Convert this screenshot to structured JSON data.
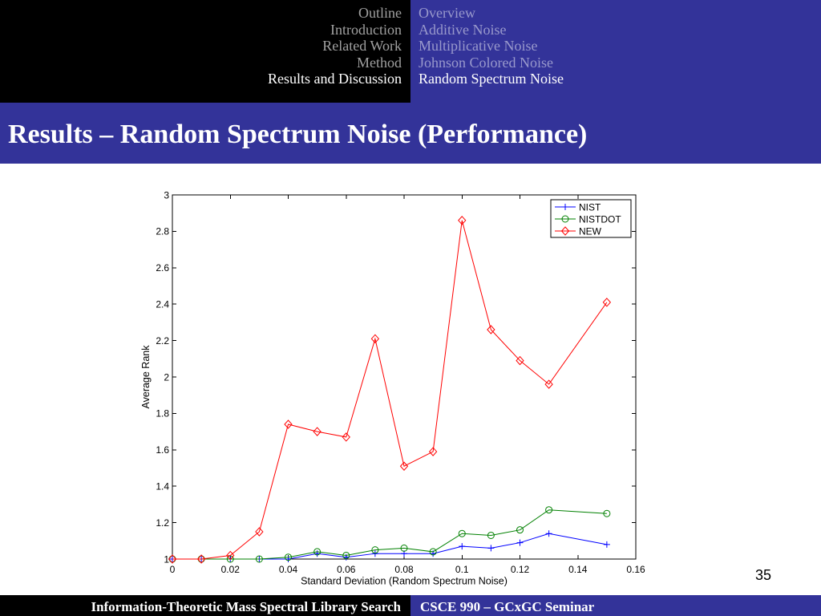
{
  "colors": {
    "header_left_bg": "#000000",
    "theme_blue": "#333399",
    "inactive_section": "#a0a0a0",
    "inactive_subsection": "#9999cc",
    "active_text": "#ffffff"
  },
  "header": {
    "sections": [
      {
        "label": "Outline",
        "active": false
      },
      {
        "label": "Introduction",
        "active": false
      },
      {
        "label": "Related Work",
        "active": false
      },
      {
        "label": "Method",
        "active": false
      },
      {
        "label": "Results and Discussion",
        "active": true
      }
    ],
    "subsections": [
      {
        "label": "Overview",
        "active": false
      },
      {
        "label": "Additive Noise",
        "active": false
      },
      {
        "label": "Multiplicative Noise",
        "active": false
      },
      {
        "label": "Johnson Colored Noise",
        "active": false
      },
      {
        "label": "Random Spectrum Noise",
        "active": true
      }
    ]
  },
  "frame_title": "Results – Random Spectrum Noise (Performance)",
  "page_number": "35",
  "footer": {
    "left": "Information-Theoretic Mass Spectral Library Search",
    "right": "CSCE 990 – GCxGC Seminar"
  },
  "chart_data": {
    "type": "line",
    "xlabel": "Standard Deviation (Random Spectrum Noise)",
    "ylabel": "Average Rank",
    "xlim": [
      0,
      0.16
    ],
    "ylim": [
      1,
      3
    ],
    "xticks": [
      0,
      0.02,
      0.04,
      0.06,
      0.08,
      0.1,
      0.12,
      0.14,
      0.16
    ],
    "yticks": [
      1,
      1.2,
      1.4,
      1.6,
      1.8,
      2,
      2.2,
      2.4,
      2.6,
      2.8,
      3
    ],
    "grid": false,
    "legend_position": "top-right",
    "x": [
      0,
      0.01,
      0.02,
      0.03,
      0.04,
      0.05,
      0.06,
      0.07,
      0.08,
      0.09,
      0.1,
      0.11,
      0.12,
      0.13,
      0.15
    ],
    "series": [
      {
        "name": "NIST",
        "color": "#0000ff",
        "marker": "plus",
        "values": [
          1,
          1,
          1,
          1,
          1.0,
          1.03,
          1.01,
          1.03,
          1.03,
          1.03,
          1.07,
          1.06,
          1.09,
          1.14,
          1.08
        ]
      },
      {
        "name": "NISTDOT",
        "color": "#008000",
        "marker": "circle",
        "values": [
          1,
          1,
          1,
          1,
          1.01,
          1.04,
          1.02,
          1.05,
          1.06,
          1.04,
          1.14,
          1.13,
          1.16,
          1.27,
          1.25
        ]
      },
      {
        "name": "NEW",
        "color": "#ff0000",
        "marker": "diamond",
        "values": [
          1,
          1,
          1.02,
          1.15,
          1.74,
          1.7,
          1.67,
          2.21,
          1.51,
          1.59,
          2.86,
          2.26,
          2.09,
          1.96,
          2.41
        ]
      }
    ]
  }
}
